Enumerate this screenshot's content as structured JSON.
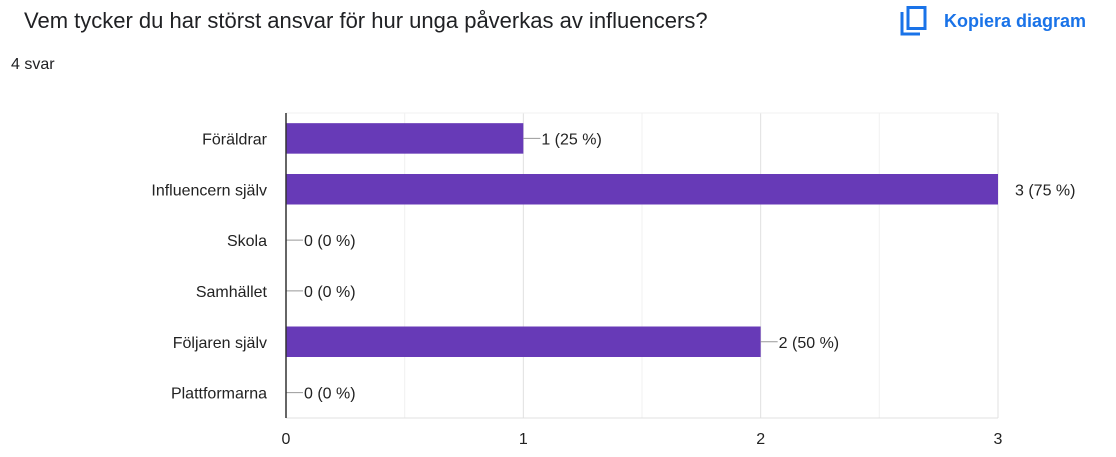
{
  "question": {
    "title": "Vem tycker du har störst ansvar för hur unga påverkas av influencers?",
    "response_count": "4 svar"
  },
  "toolbar": {
    "copy_label": "Kopiera diagram",
    "copy_icon": "copy-icon"
  },
  "colors": {
    "bar": "#673ab7",
    "link": "#1a73e8",
    "grid": "#e5e5e5",
    "axis": "#333333"
  },
  "chart_data": {
    "type": "bar",
    "orientation": "horizontal",
    "categories": [
      "Föräldrar",
      "Influencern själv",
      "Skola",
      "Samhället",
      "Följaren själv",
      "Plattformarna"
    ],
    "values": [
      1,
      3,
      0,
      0,
      2,
      0
    ],
    "data_labels": [
      "1 (25 %)",
      "3 (75 %)",
      "0 (0 %)",
      "0 (0 %)",
      "2 (50 %)",
      "0 (0 %)"
    ],
    "xlim": [
      0,
      3
    ],
    "x_ticks": [
      "0",
      "1",
      "2",
      "3"
    ],
    "grid": true,
    "legend": "none"
  }
}
